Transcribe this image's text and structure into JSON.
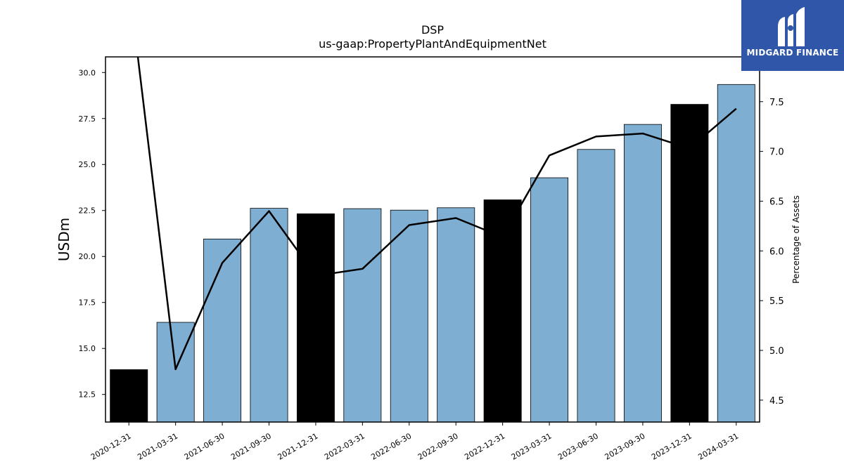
{
  "chart_data": {
    "type": "bar",
    "title": "DSP",
    "subtitle": "us-gaap:PropertyPlantAndEquipmentNet",
    "ylabel": "USDm",
    "y2label": "Percentage of Assets",
    "categories": [
      "2020-12-31",
      "2021-03-31",
      "2021-06-30",
      "2021-09-30",
      "2021-12-31",
      "2022-03-31",
      "2022-06-30",
      "2022-09-30",
      "2022-12-31",
      "2023-03-31",
      "2023-06-30",
      "2023-09-30",
      "2023-12-31",
      "2024-03-31"
    ],
    "series": [
      {
        "values": [
          13.85,
          16.42,
          20.95,
          22.62,
          22.32,
          22.6,
          22.52,
          22.65,
          23.08,
          24.28,
          25.82,
          27.18,
          28.27,
          29.35
        ],
        "kind": "bar"
      },
      {
        "values": [
          8.7,
          4.81,
          5.88,
          6.4,
          5.75,
          5.82,
          6.26,
          6.33,
          6.14,
          6.96,
          7.15,
          7.18,
          7.03,
          7.43
        ],
        "kind": "line",
        "axis": "right"
      }
    ],
    "bar_colors": [
      "#000000",
      "#7eaed2",
      "#7eaed2",
      "#7eaed2",
      "#000000",
      "#7eaed2",
      "#7eaed2",
      "#7eaed2",
      "#000000",
      "#7eaed2",
      "#7eaed2",
      "#7eaed2",
      "#000000",
      "#7eaed2"
    ],
    "ylim": [
      11.0,
      30.85
    ],
    "y2lim": [
      4.28,
      7.95
    ],
    "yticks": [
      "12.5",
      "15.0",
      "17.5",
      "20.0",
      "22.5",
      "25.0",
      "27.5",
      "30.0"
    ],
    "y2ticks": [
      "4.5",
      "5.0",
      "5.5",
      "6.0",
      "6.5",
      "7.0",
      "7.5"
    ],
    "grid": false,
    "legend": "none"
  },
  "logo": {
    "text": "MIDGARD FINANCE",
    "color": "#2f56a8"
  }
}
